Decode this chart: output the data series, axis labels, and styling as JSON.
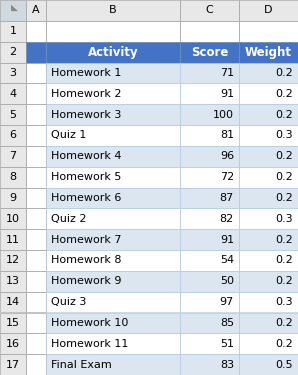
{
  "col_labels": [
    "A",
    "B",
    "C",
    "D"
  ],
  "header": [
    "Activity",
    "Score",
    "Weight"
  ],
  "rows": [
    [
      "Homework 1",
      71,
      0.2
    ],
    [
      "Homework 2",
      91,
      0.2
    ],
    [
      "Homework 3",
      100,
      0.2
    ],
    [
      "Quiz 1",
      81,
      0.3
    ],
    [
      "Homework 4",
      96,
      0.2
    ],
    [
      "Homework 5",
      72,
      0.2
    ],
    [
      "Homework 6",
      87,
      0.2
    ],
    [
      "Quiz 2",
      82,
      0.3
    ],
    [
      "Homework 7",
      91,
      0.2
    ],
    [
      "Homework 8",
      54,
      0.2
    ],
    [
      "Homework 9",
      50,
      0.2
    ],
    [
      "Quiz 3",
      97,
      0.3
    ],
    [
      "Homework 10",
      85,
      0.2
    ],
    [
      "Homework 11",
      51,
      0.2
    ],
    [
      "Final Exam",
      83,
      0.5
    ]
  ],
  "header_bg": "#4472C4",
  "header_fg": "#FFFFFF",
  "row_bg_even": "#FFFFFF",
  "row_bg_odd": "#DCE6F1",
  "row_fg": "#000000",
  "row_num_bg": "#E8E8E8",
  "col_hdr_bg": "#E8E8E8",
  "col_hdr_fg": "#000000",
  "tri_bg": "#D0D8E0",
  "grid_color": "#AAAAAA",
  "data_grid_color": "#B8CCE4",
  "fig_bg": "#FFFFFF",
  "font_size": 8.0,
  "header_font_size": 8.5
}
